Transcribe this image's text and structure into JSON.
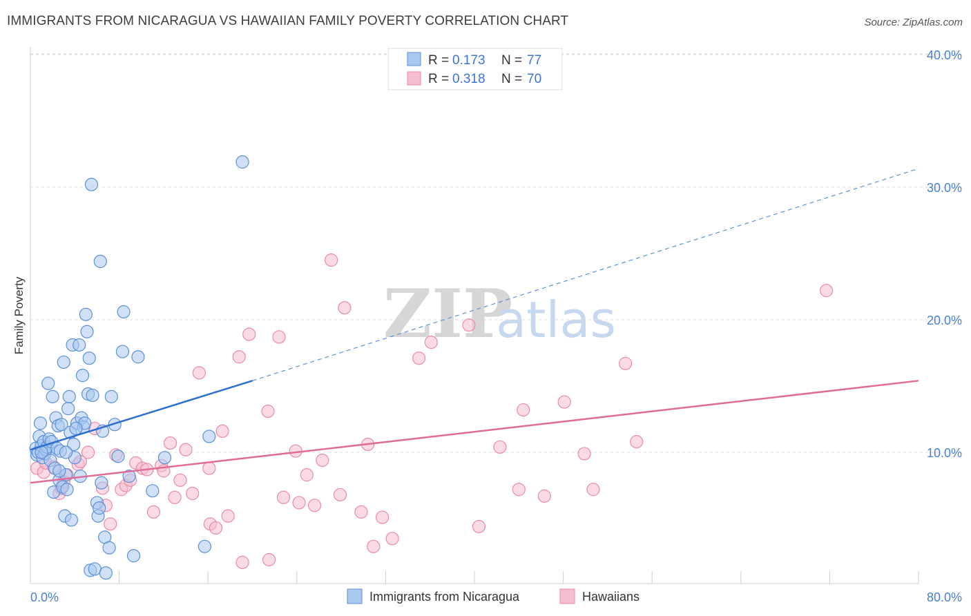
{
  "title": "IMMIGRANTS FROM NICARAGUA VS HAWAIIAN FAMILY POVERTY CORRELATION CHART",
  "source": "Source: ZipAtlas.com",
  "watermark": {
    "zip": "ZIP",
    "atlas": "atlas"
  },
  "colors": {
    "blue_fill": "#a9c8f0",
    "blue_stroke": "#5b8fd6",
    "blue_line": "#2b6fd0",
    "pink_fill": "#f6bdd0",
    "pink_stroke": "#e88aa8",
    "pink_line": "#e06a98",
    "tick": "#4a7fd0",
    "grid": "#dcdcdc"
  },
  "legend": {
    "rows": [
      {
        "r_label": "R = ",
        "r_value": "0.173",
        "n_label": "N = ",
        "n_value": "77"
      },
      {
        "r_label": "R = ",
        "r_value": "0.318",
        "n_label": "N = ",
        "n_value": "70"
      }
    ]
  },
  "bottom_legend": [
    "Immigrants from Nicaragua",
    "Hawaiians"
  ],
  "chart_data": {
    "type": "scatter",
    "title": "IMMIGRANTS FROM NICARAGUA VS HAWAIIAN FAMILY POVERTY CORRELATION CHART",
    "xlabel": "",
    "ylabel": "Family Poverty",
    "xlim": [
      0,
      80
    ],
    "ylim": [
      0,
      42
    ],
    "y_ticks": [
      10,
      20,
      30,
      40
    ],
    "y_tick_labels": [
      "10.0%",
      "20.0%",
      "30.0%",
      "40.0%"
    ],
    "x_tick_labels": [
      "0.0%",
      "80.0%"
    ],
    "grid": "horizontal dashed",
    "legend_position": "top-center",
    "series": [
      {
        "name": "Immigrants from Nicaragua",
        "r": 0.173,
        "n": 77,
        "trend": {
          "x": [
            0,
            20
          ],
          "y": [
            10.2,
            15.4
          ],
          "dashed_extension_to": [
            80,
            31.4
          ]
        },
        "points": [
          [
            0.5,
            10.3
          ],
          [
            0.6,
            9.8
          ],
          [
            0.7,
            10.0
          ],
          [
            0.8,
            11.2
          ],
          [
            0.9,
            12.2
          ],
          [
            1.0,
            10.5
          ],
          [
            1.1,
            9.6
          ],
          [
            1.2,
            10.8
          ],
          [
            1.3,
            9.9
          ],
          [
            1.4,
            10.2
          ],
          [
            1.5,
            10.4
          ],
          [
            1.6,
            15.2
          ],
          [
            1.7,
            11.0
          ],
          [
            1.8,
            9.4
          ],
          [
            1.9,
            10.8
          ],
          [
            2.0,
            14.2
          ],
          [
            2.1,
            7.0
          ],
          [
            2.2,
            8.8
          ],
          [
            2.3,
            12.6
          ],
          [
            2.4,
            10.3
          ],
          [
            2.5,
            12.0
          ],
          [
            2.6,
            7.9
          ],
          [
            2.7,
            10.1
          ],
          [
            2.8,
            12.1
          ],
          [
            2.9,
            7.4
          ],
          [
            3.0,
            16.8
          ],
          [
            3.1,
            5.2
          ],
          [
            3.2,
            8.3
          ],
          [
            3.3,
            7.2
          ],
          [
            3.4,
            13.3
          ],
          [
            3.5,
            14.2
          ],
          [
            3.6,
            11.5
          ],
          [
            3.7,
            4.9
          ],
          [
            3.8,
            18.1
          ],
          [
            3.9,
            10.6
          ],
          [
            4.0,
            9.6
          ],
          [
            4.2,
            12.2
          ],
          [
            4.4,
            18.1
          ],
          [
            4.5,
            8.2
          ],
          [
            4.6,
            12.6
          ],
          [
            4.7,
            15.8
          ],
          [
            4.8,
            11.9
          ],
          [
            4.9,
            12.2
          ],
          [
            5.0,
            20.4
          ],
          [
            5.1,
            19.1
          ],
          [
            5.2,
            14.4
          ],
          [
            5.3,
            17.1
          ],
          [
            5.4,
            1.1
          ],
          [
            5.5,
            30.2
          ],
          [
            5.6,
            14.3
          ],
          [
            5.8,
            1.2
          ],
          [
            6.0,
            6.2
          ],
          [
            6.1,
            5.2
          ],
          [
            6.2,
            5.8
          ],
          [
            6.3,
            24.4
          ],
          [
            6.4,
            7.7
          ],
          [
            6.5,
            11.6
          ],
          [
            6.7,
            3.6
          ],
          [
            6.8,
            0.9
          ],
          [
            7.1,
            2.8
          ],
          [
            7.3,
            14.2
          ],
          [
            7.6,
            12.1
          ],
          [
            7.9,
            9.7
          ],
          [
            8.3,
            17.6
          ],
          [
            8.4,
            20.6
          ],
          [
            8.9,
            8.2
          ],
          [
            9.3,
            2.2
          ],
          [
            9.7,
            17.2
          ],
          [
            11.0,
            7.1
          ],
          [
            12.1,
            9.6
          ],
          [
            15.7,
            2.9
          ],
          [
            16.1,
            11.2
          ],
          [
            19.1,
            31.9
          ],
          [
            2.6,
            8.6
          ],
          [
            3.2,
            10.0
          ],
          [
            4.1,
            11.8
          ],
          [
            1.0,
            10.0
          ]
        ]
      },
      {
        "name": "Hawaiians",
        "r": 0.318,
        "n": 70,
        "trend": {
          "x": [
            0,
            80
          ],
          "y": [
            7.7,
            15.4
          ]
        },
        "points": [
          [
            0.6,
            8.8
          ],
          [
            1.2,
            8.5
          ],
          [
            1.4,
            9.2
          ],
          [
            2.1,
            8.9
          ],
          [
            2.6,
            6.9
          ],
          [
            2.8,
            7.3
          ],
          [
            3.0,
            7.8
          ],
          [
            3.3,
            8.3
          ],
          [
            4.3,
            9.1
          ],
          [
            4.5,
            9.3
          ],
          [
            5.2,
            10.0
          ],
          [
            5.8,
            11.8
          ],
          [
            6.5,
            7.3
          ],
          [
            6.8,
            6.0
          ],
          [
            7.2,
            4.6
          ],
          [
            7.7,
            9.8
          ],
          [
            8.2,
            7.2
          ],
          [
            8.6,
            7.5
          ],
          [
            9.0,
            7.9
          ],
          [
            9.5,
            9.2
          ],
          [
            10.1,
            8.8
          ],
          [
            10.5,
            8.7
          ],
          [
            11.1,
            5.5
          ],
          [
            11.8,
            9.0
          ],
          [
            12.0,
            8.6
          ],
          [
            12.6,
            10.7
          ],
          [
            13.0,
            6.6
          ],
          [
            13.5,
            7.9
          ],
          [
            14.0,
            10.2
          ],
          [
            14.6,
            6.9
          ],
          [
            15.2,
            16.0
          ],
          [
            16.1,
            8.8
          ],
          [
            16.2,
            4.6
          ],
          [
            16.7,
            4.3
          ],
          [
            17.3,
            11.6
          ],
          [
            17.8,
            5.2
          ],
          [
            18.8,
            17.2
          ],
          [
            19.1,
            1.7
          ],
          [
            19.7,
            18.9
          ],
          [
            21.4,
            13.1
          ],
          [
            21.5,
            1.9
          ],
          [
            22.4,
            18.7
          ],
          [
            22.8,
            6.6
          ],
          [
            23.9,
            10.1
          ],
          [
            24.2,
            6.2
          ],
          [
            24.9,
            8.3
          ],
          [
            25.6,
            6.0
          ],
          [
            26.3,
            9.4
          ],
          [
            27.1,
            24.5
          ],
          [
            27.9,
            6.8
          ],
          [
            28.3,
            20.9
          ],
          [
            29.8,
            5.5
          ],
          [
            30.4,
            10.6
          ],
          [
            30.9,
            2.9
          ],
          [
            31.7,
            5.1
          ],
          [
            32.6,
            3.5
          ],
          [
            35.0,
            17.1
          ],
          [
            36.1,
            18.3
          ],
          [
            39.5,
            19.6
          ],
          [
            40.4,
            4.4
          ],
          [
            42.3,
            10.4
          ],
          [
            44.0,
            7.2
          ],
          [
            44.4,
            13.2
          ],
          [
            46.3,
            6.7
          ],
          [
            48.1,
            13.8
          ],
          [
            49.9,
            9.9
          ],
          [
            50.7,
            7.2
          ],
          [
            53.6,
            16.7
          ],
          [
            54.6,
            10.8
          ],
          [
            71.7,
            22.2
          ]
        ]
      }
    ]
  }
}
